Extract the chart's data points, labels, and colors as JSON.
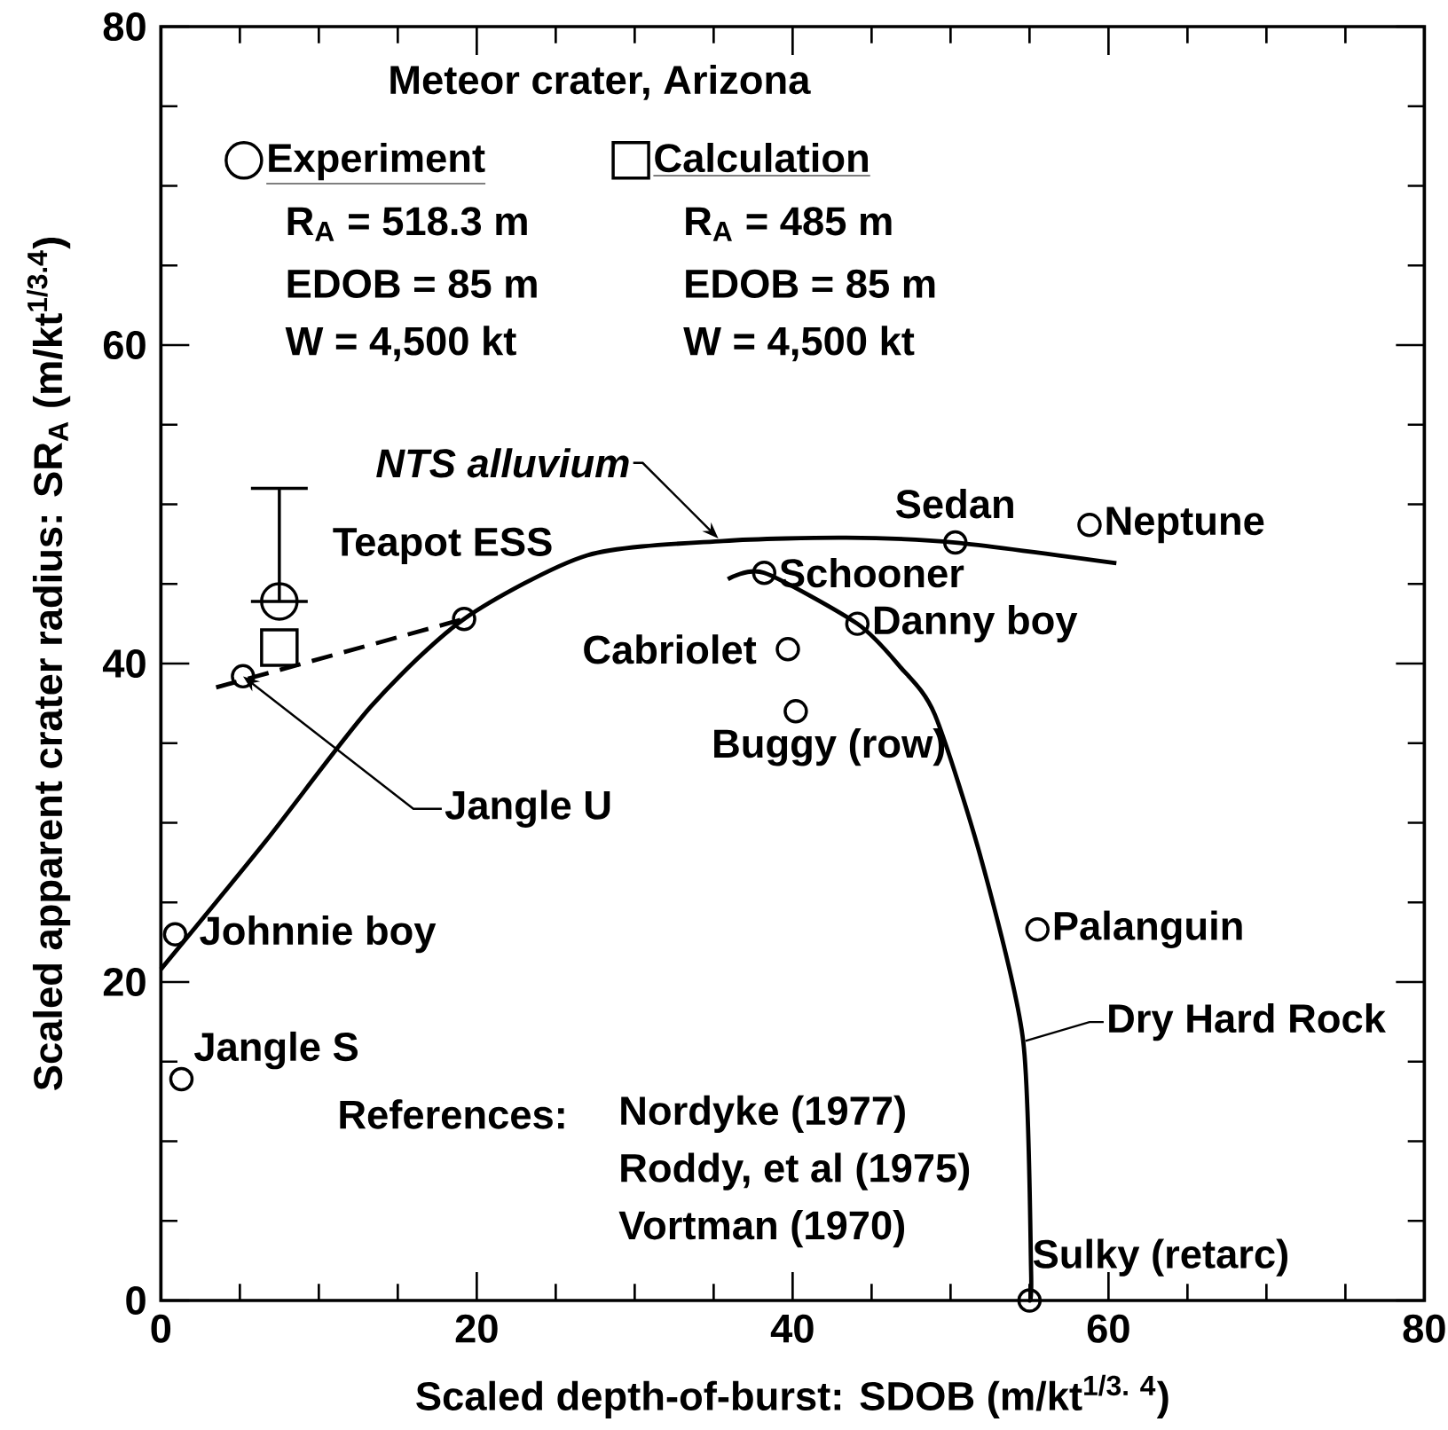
{
  "chart_data": {
    "type": "scatter",
    "xlabel": "Scaled depth-of-burst:  SDOB (m/kt$^{1/3. 4}$)",
    "ylabel": "Scaled apparent crater radius: SR$_{A}$ (m/kt$^{1/3.4}$)",
    "xlim": [
      0,
      80
    ],
    "ylim": [
      0,
      80
    ],
    "xticks": [
      0,
      20,
      40,
      60,
      80
    ],
    "yticks": [
      0,
      20,
      40,
      60,
      80
    ],
    "marker": "circle",
    "legend": "top left",
    "series": [
      {
        "name": "NTS alluvium",
        "type": "line",
        "color": "#000000",
        "marker": "none",
        "line_style": "solid",
        "x": [
          0,
          6.6,
          13.3,
          19.2,
          27.0,
          35.6,
          43.4,
          50.3,
          60.5
        ],
        "values": [
          20.8,
          28.8,
          37.3,
          42.8,
          46.8,
          47.7,
          47.9,
          47.6,
          46.3
        ]
      },
      {
        "type": "line",
        "color": "#000000",
        "marker": "none",
        "line_style": "dashed",
        "x": [
          3.5,
          19.2
        ],
        "values": [
          38.5,
          42.8
        ]
      },
      {
        "name": "Dry Hard Rock",
        "type": "line",
        "color": "#000000",
        "marker": "none",
        "line_style": "solid",
        "x": [
          35.9,
          38.2,
          44.1,
          46.8,
          49.0,
          52.0,
          54.6,
          55.1,
          55.0
        ],
        "values": [
          45.3,
          45.7,
          42.5,
          39.8,
          36.8,
          27.5,
          16.3,
          1.8,
          0
        ]
      },
      {
        "color": "#000000",
        "x": [
          0.9,
          1.3,
          5.2,
          19.2,
          38.2,
          39.7,
          40.2,
          44.1,
          50.3,
          58.8,
          55.5,
          55.0
        ],
        "values": [
          23,
          13.9,
          39.2,
          42.8,
          45.7,
          40.9,
          37.0,
          42.5,
          47.6,
          48.7,
          23.3,
          0
        ]
      },
      {
        "name": "Experiment",
        "color": "#000000",
        "x": [
          7.5
        ],
        "values": [
          43.9
        ],
        "errors": [
          [
            43.9,
            51
          ]
        ]
      },
      {
        "name": "Calculation",
        "color": "#000000",
        "marker": "square",
        "x": [
          7.5
        ],
        "values": [
          41.0
        ]
      }
    ],
    "annotations": [
      "Meteor crater, Arizona",
      "R$_{A}$ = 518.3 m",
      "EDOB = 85 m",
      "W = 4,500 kt",
      "R$_{A}$ = 485 m",
      "EDOB = 85 m",
      "W = 4,500 kt",
      "References:",
      "Nordyke (1977)",
      "Roddy, et al (1975)",
      "Vortman (1970)",
      {
        "text": "Johnnie boy",
        "x": 0.9,
        "y": 23
      },
      {
        "text": "Jangle S",
        "x": 1.3,
        "y": 13.9
      },
      {
        "text": "Jangle U",
        "x": 5.2,
        "y": 39.2
      },
      {
        "text": "Teapot ESS",
        "x": 19.2,
        "y": 42.8
      },
      {
        "text": "Schooner",
        "x": 38.2,
        "y": 45.7
      },
      {
        "text": "Cabriolet",
        "x": 39.7,
        "y": 40.9
      },
      {
        "text": "Buggy (row)",
        "x": 40.2,
        "y": 37.0
      },
      {
        "text": "Danny boy",
        "x": 44.1,
        "y": 42.5
      },
      {
        "text": "Sedan",
        "x": 50.3,
        "y": 47.6
      },
      {
        "text": "Neptune",
        "x": 58.8,
        "y": 48.7
      },
      {
        "text": "Palanguin",
        "x": 55.5,
        "y": 23.3
      },
      {
        "text": "Sulky (retarc)",
        "x": 55.0,
        "y": 0
      }
    ]
  }
}
